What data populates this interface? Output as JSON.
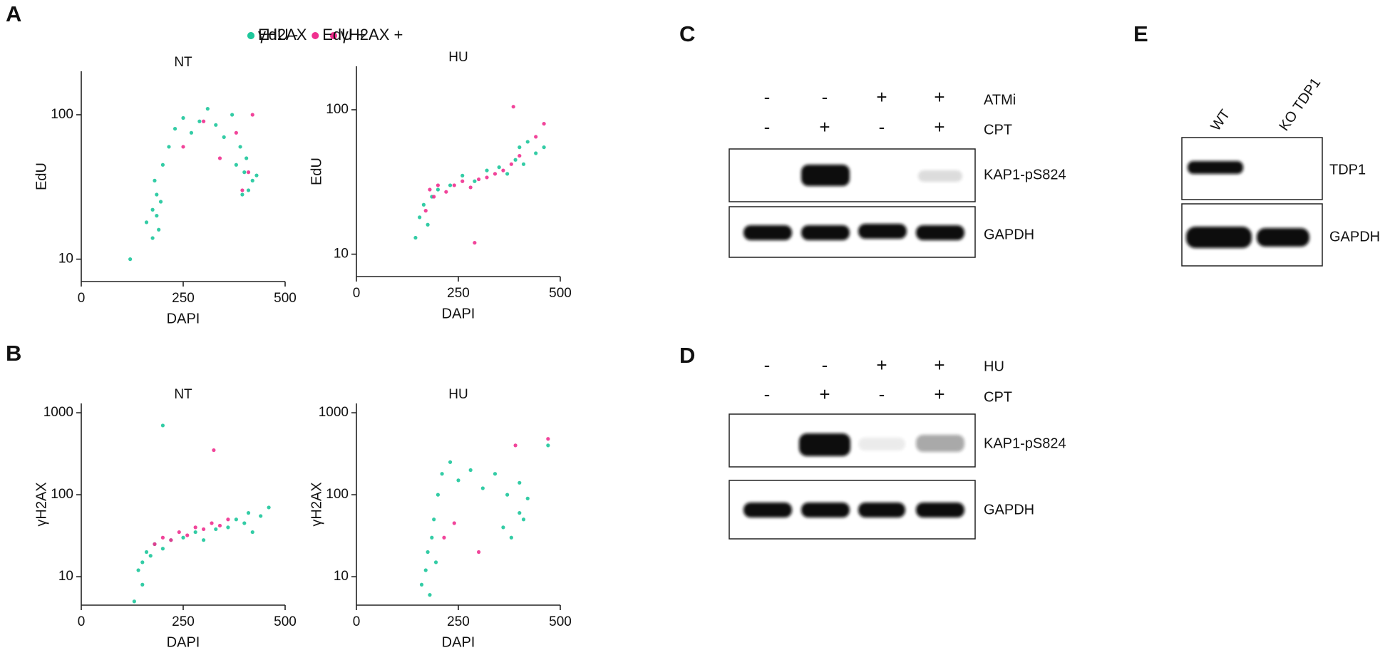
{
  "panel_labels": [
    "A",
    "B",
    "C",
    "D",
    "E"
  ],
  "chart_data": [
    {
      "type": "scatter",
      "title": "NT",
      "xlabel": "DAPI",
      "ylabel": "EdU",
      "xlim": [
        0,
        500
      ],
      "ylim": [
        7,
        200
      ],
      "log_y": true,
      "xticks": [
        0,
        250,
        500
      ],
      "yticks": [
        10,
        100
      ],
      "legend": "top",
      "series": [
        {
          "name": "γH2AX -",
          "color": "#1dc79b",
          "x": [
            120,
            160,
            175,
            185,
            190,
            180,
            195,
            200,
            215,
            230,
            250,
            270,
            290,
            310,
            330,
            350,
            370,
            390,
            400,
            410,
            420,
            380,
            395,
            405,
            430,
            175,
            185
          ],
          "values": [
            10,
            18,
            22,
            28,
            16,
            35,
            25,
            45,
            60,
            80,
            95,
            75,
            90,
            110,
            85,
            70,
            100,
            60,
            40,
            30,
            35,
            45,
            28,
            50,
            38,
            14,
            20
          ]
        },
        {
          "name": "γH2AX +",
          "color": "#f0308f",
          "x": [
            250,
            300,
            340,
            380,
            410,
            395,
            420
          ],
          "values": [
            60,
            90,
            50,
            75,
            40,
            30,
            100
          ]
        }
      ]
    },
    {
      "type": "scatter",
      "title": "HU",
      "xlabel": "DAPI",
      "ylabel": "EdU",
      "xlim": [
        0,
        500
      ],
      "ylim": [
        7,
        200
      ],
      "log_y": true,
      "xticks": [
        0,
        250,
        500
      ],
      "yticks": [
        10,
        100
      ],
      "legend": false,
      "series": [
        {
          "name": "γH2AX -",
          "color": "#1dc79b",
          "x": [
            145,
            155,
            165,
            175,
            185,
            200,
            230,
            260,
            290,
            320,
            350,
            370,
            390,
            400,
            410,
            420,
            440,
            460
          ],
          "values": [
            13,
            18,
            22,
            16,
            25,
            28,
            30,
            35,
            32,
            38,
            40,
            36,
            45,
            55,
            42,
            60,
            50,
            55
          ]
        },
        {
          "name": "γH2AX +",
          "color": "#f0308f",
          "x": [
            170,
            180,
            190,
            200,
            220,
            240,
            260,
            280,
            300,
            320,
            340,
            360,
            380,
            400,
            440,
            460,
            290,
            385
          ],
          "values": [
            20,
            28,
            25,
            30,
            27,
            30,
            32,
            29,
            33,
            34,
            36,
            38,
            42,
            48,
            65,
            80,
            12,
            105
          ]
        }
      ]
    },
    {
      "type": "scatter",
      "title": "NT",
      "xlabel": "DAPI",
      "ylabel": "γH2AX",
      "xlim": [
        0,
        500
      ],
      "ylim": [
        4.5,
        1300
      ],
      "log_y": true,
      "xticks": [
        0,
        250,
        500
      ],
      "yticks": [
        10,
        100,
        1000
      ],
      "legend": "top",
      "series": [
        {
          "name": "EdU -",
          "color": "#1dc79b",
          "x": [
            130,
            140,
            150,
            160,
            170,
            180,
            200,
            220,
            250,
            280,
            300,
            330,
            360,
            380,
            400,
            410,
            420,
            440,
            460,
            200,
            150
          ],
          "values": [
            5,
            12,
            15,
            20,
            18,
            25,
            22,
            28,
            30,
            35,
            28,
            38,
            40,
            50,
            45,
            60,
            35,
            55,
            70,
            700,
            8
          ]
        },
        {
          "name": "EdU +",
          "color": "#f0308f",
          "x": [
            180,
            200,
            220,
            240,
            260,
            280,
            300,
            320,
            340,
            360,
            325
          ],
          "values": [
            25,
            30,
            28,
            35,
            32,
            40,
            38,
            45,
            42,
            50,
            350
          ]
        }
      ]
    },
    {
      "type": "scatter",
      "title": "HU",
      "xlabel": "DAPI",
      "ylabel": "γH2AX",
      "xlim": [
        0,
        500
      ],
      "ylim": [
        4.5,
        1300
      ],
      "log_y": true,
      "xticks": [
        0,
        250,
        500
      ],
      "yticks": [
        10,
        100,
        1000
      ],
      "legend": false,
      "series": [
        {
          "name": "EdU -",
          "color": "#1dc79b",
          "x": [
            160,
            170,
            175,
            180,
            185,
            190,
            195,
            200,
            210,
            230,
            250,
            280,
            310,
            340,
            370,
            400,
            420,
            360,
            380,
            400,
            410,
            470
          ],
          "values": [
            8,
            12,
            20,
            6,
            30,
            50,
            15,
            100,
            180,
            250,
            150,
            200,
            120,
            180,
            100,
            140,
            90,
            40,
            30,
            60,
            50,
            400
          ]
        },
        {
          "name": "EdU +",
          "color": "#f0308f",
          "x": [
            215,
            240,
            300,
            390,
            470
          ],
          "values": [
            30,
            45,
            20,
            400,
            480
          ]
        }
      ]
    }
  ],
  "blots": {
    "C": {
      "rows": [
        {
          "name": "ATMi",
          "signs": [
            "-",
            "-",
            "+",
            "+"
          ]
        },
        {
          "name": "CPT",
          "signs": [
            "-",
            "+",
            "-",
            "+"
          ]
        }
      ],
      "bands": [
        "KAP1-pS824",
        "GAPDH"
      ]
    },
    "D": {
      "rows": [
        {
          "name": "HU",
          "signs": [
            "-",
            "-",
            "+",
            "+"
          ]
        },
        {
          "name": "CPT",
          "signs": [
            "-",
            "+",
            "-",
            "+"
          ]
        }
      ],
      "bands": [
        "KAP1-pS824",
        "GAPDH"
      ]
    },
    "E": {
      "lanes": [
        "WT",
        "KO TDP1"
      ],
      "bands": [
        "TDP1",
        "GAPDH"
      ]
    }
  }
}
